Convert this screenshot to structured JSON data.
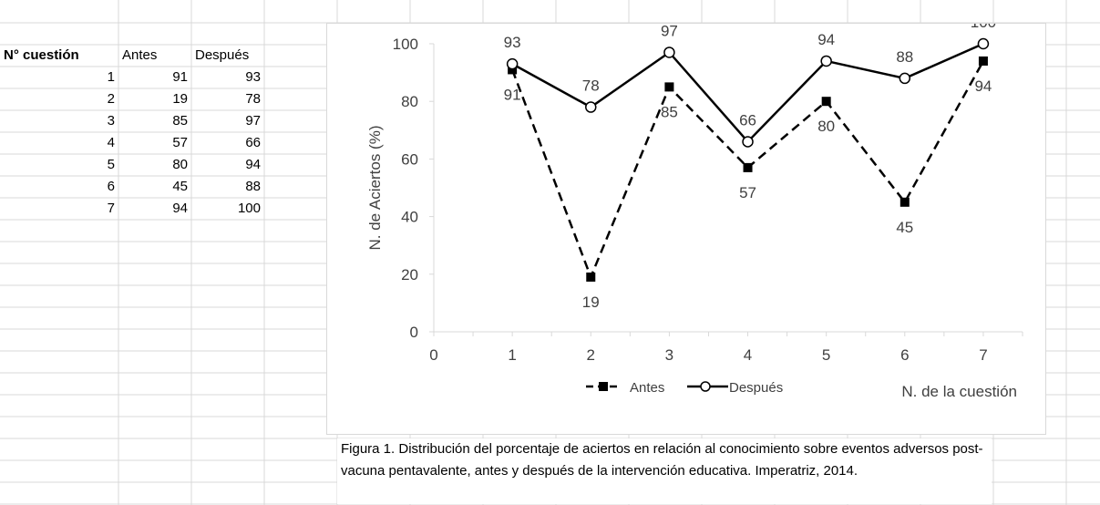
{
  "table": {
    "headers": [
      "N° cuestión",
      "Antes",
      "Después"
    ],
    "rows": [
      [
        "1",
        "91",
        "93"
      ],
      [
        "2",
        "19",
        "78"
      ],
      [
        "3",
        "85",
        "97"
      ],
      [
        "4",
        "57",
        "66"
      ],
      [
        "5",
        "80",
        "94"
      ],
      [
        "6",
        "45",
        "88"
      ],
      [
        "7",
        "94",
        "100"
      ]
    ]
  },
  "chart_data": {
    "type": "line",
    "x": [
      1,
      2,
      3,
      4,
      5,
      6,
      7
    ],
    "x_ticks": [
      0,
      1,
      2,
      3,
      4,
      5,
      6,
      7
    ],
    "y_ticks": [
      0,
      20,
      40,
      60,
      80,
      100
    ],
    "xlim": [
      0,
      7.5
    ],
    "ylim": [
      0,
      100
    ],
    "xlabel": "N. de la cuestión",
    "ylabel": "N. de  Aciertos (%)",
    "grid": false,
    "legend_position": "bottom",
    "series": [
      {
        "name": "Antes",
        "values": [
          91,
          19,
          85,
          57,
          80,
          45,
          94
        ],
        "style": "dashed",
        "marker": "square",
        "color": "#000000"
      },
      {
        "name": "Después",
        "values": [
          93,
          78,
          97,
          66,
          94,
          88,
          100
        ],
        "style": "solid",
        "marker": "circle",
        "color": "#000000"
      }
    ]
  },
  "caption": "Figura 1. Distribución del porcentaje de aciertos en relación al conocimiento sobre eventos adversos post-vacuna pentavalente, antes y después de la intervención educativa. Imperatriz, 2014.",
  "colors": {
    "gridline": "#d9d9d9",
    "axis": "#d9d9d9",
    "text": "#404040"
  }
}
